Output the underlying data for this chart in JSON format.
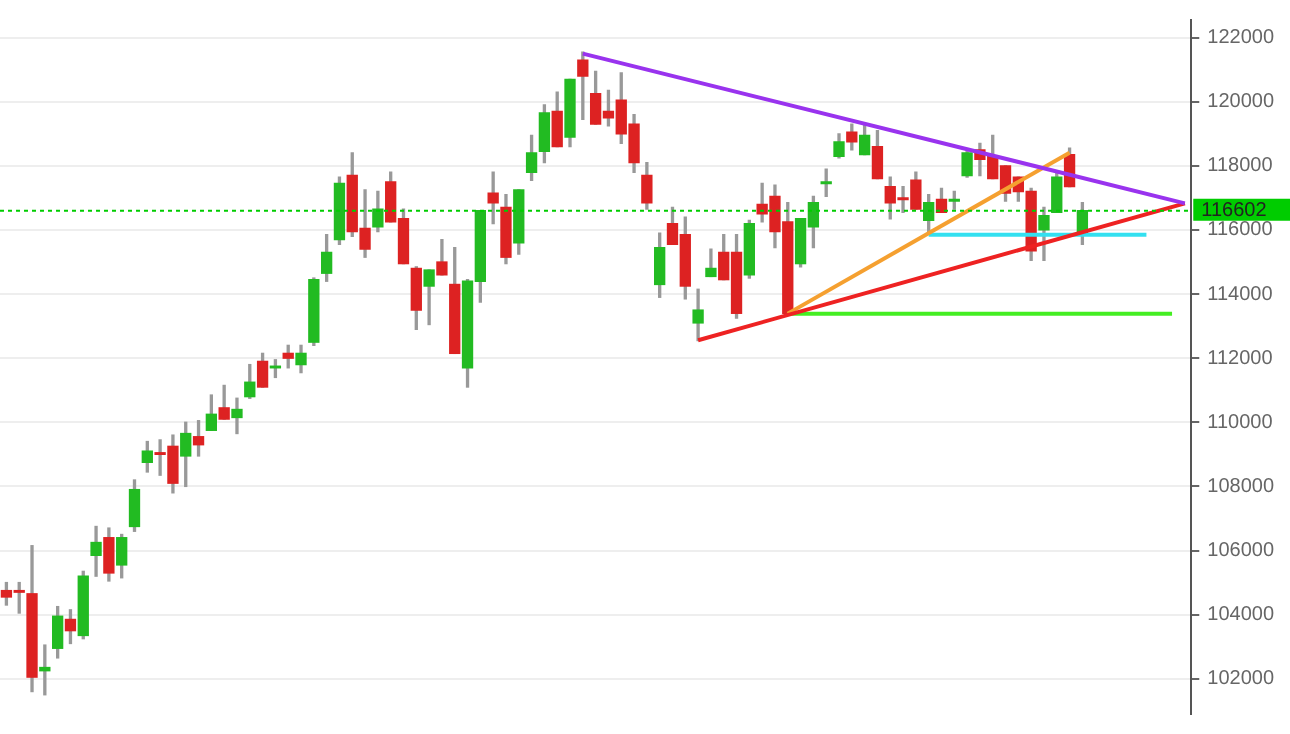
{
  "chart_data": {
    "type": "candlestick",
    "categories": [
      null,
      null,
      null,
      null,
      null,
      null,
      null,
      null,
      null,
      null,
      null,
      null,
      null,
      null,
      null,
      null,
      null,
      null,
      null,
      null,
      null,
      null,
      null,
      null,
      null,
      null,
      null,
      null,
      null,
      null,
      null,
      null,
      null,
      null,
      null,
      null,
      null,
      null,
      null,
      null,
      null,
      null,
      null,
      null,
      null,
      null,
      null,
      null,
      null,
      null,
      null,
      null,
      null,
      null,
      null,
      null,
      null,
      null,
      null,
      null,
      null,
      null,
      null,
      null,
      null,
      null,
      null,
      null,
      null,
      null,
      null,
      null,
      null,
      null,
      null,
      null,
      null,
      null,
      null,
      null,
      null,
      null,
      null,
      null,
      null,
      null,
      null,
      null,
      null,
      null,
      null,
      null,
      null
    ],
    "ohlc": [
      [
        104750,
        105000,
        104300,
        104550
      ],
      [
        104750,
        105000,
        104050,
        104700
      ],
      [
        104650,
        106150,
        101600,
        102050
      ],
      [
        102250,
        103050,
        101500,
        102350
      ],
      [
        102950,
        104250,
        102650,
        103950
      ],
      [
        103850,
        104150,
        103100,
        103500
      ],
      [
        103350,
        105350,
        103250,
        105200
      ],
      [
        105850,
        106750,
        105200,
        106250
      ],
      [
        106400,
        106700,
        105050,
        105300
      ],
      [
        105550,
        106500,
        105150,
        106400
      ],
      [
        106750,
        108200,
        106600,
        107900
      ],
      [
        108750,
        109400,
        108450,
        109100
      ],
      [
        109050,
        109450,
        108350,
        109000
      ],
      [
        109250,
        109600,
        107800,
        108100
      ],
      [
        108950,
        110000,
        108000,
        109650
      ],
      [
        109550,
        110050,
        108950,
        109300
      ],
      [
        109750,
        110850,
        109750,
        110250
      ],
      [
        110450,
        111150,
        110100,
        110100
      ],
      [
        110150,
        110750,
        109650,
        110400
      ],
      [
        110800,
        111800,
        110750,
        111250
      ],
      [
        111900,
        112150,
        111100,
        111100
      ],
      [
        111700,
        111950,
        111400,
        111750
      ],
      [
        112150,
        112400,
        111700,
        112000
      ],
      [
        111800,
        112400,
        111550,
        112150
      ],
      [
        112500,
        114500,
        112400,
        114450
      ],
      [
        114650,
        115850,
        114400,
        115300
      ],
      [
        115700,
        117650,
        115550,
        117450
      ],
      [
        117700,
        118400,
        115800,
        115950
      ],
      [
        116050,
        117250,
        115150,
        115400
      ],
      [
        116100,
        117200,
        115950,
        116650
      ],
      [
        117500,
        117800,
        116250,
        116250
      ],
      [
        116350,
        116650,
        114950,
        114950
      ],
      [
        114800,
        114850,
        112900,
        113500
      ],
      [
        114250,
        114750,
        113050,
        114750
      ],
      [
        115000,
        115700,
        114600,
        114600
      ],
      [
        114300,
        115450,
        112150,
        112150
      ],
      [
        111700,
        114450,
        111100,
        114400
      ],
      [
        114400,
        116600,
        113750,
        116600
      ],
      [
        117150,
        117800,
        116200,
        116850
      ],
      [
        116700,
        117100,
        114950,
        115150
      ],
      [
        115600,
        117250,
        115250,
        117250
      ],
      [
        117800,
        118950,
        117550,
        118400
      ],
      [
        118450,
        119900,
        118100,
        119650
      ],
      [
        119700,
        120300,
        118600,
        118600
      ],
      [
        118900,
        120700,
        118600,
        120700
      ],
      [
        121300,
        121550,
        119450,
        120800
      ],
      [
        120250,
        120950,
        119300,
        119300
      ],
      [
        119700,
        120350,
        119250,
        119500
      ],
      [
        120050,
        120900,
        118700,
        119000
      ],
      [
        119300,
        119600,
        117800,
        118100
      ],
      [
        117700,
        118100,
        116650,
        116850
      ],
      [
        114300,
        115900,
        113900,
        115450
      ],
      [
        116200,
        116700,
        115550,
        115550
      ],
      [
        115850,
        116400,
        113850,
        114250
      ],
      [
        113100,
        114150,
        112550,
        113500
      ],
      [
        114550,
        115400,
        114550,
        114800
      ],
      [
        115300,
        115850,
        114450,
        114450
      ],
      [
        115300,
        115850,
        113250,
        113400
      ],
      [
        114600,
        116300,
        114500,
        116200
      ],
      [
        116800,
        117450,
        116250,
        116500
      ],
      [
        117050,
        117400,
        115450,
        115950
      ],
      [
        116250,
        116850,
        113400,
        113400
      ],
      [
        114950,
        116350,
        114850,
        116350
      ],
      [
        116100,
        117050,
        115450,
        116850
      ],
      [
        117450,
        117900,
        117050,
        117500
      ],
      [
        118300,
        119000,
        118250,
        118750
      ],
      [
        119050,
        119300,
        118500,
        118750
      ],
      [
        118350,
        119300,
        118350,
        118950
      ],
      [
        118600,
        119100,
        117600,
        117600
      ],
      [
        117350,
        117650,
        116350,
        116850
      ],
      [
        117000,
        117350,
        116550,
        116950
      ],
      [
        117550,
        117800,
        116650,
        116650
      ],
      [
        116300,
        117100,
        115950,
        116850
      ],
      [
        116950,
        117300,
        116550,
        116550
      ],
      [
        116900,
        117200,
        116650,
        116950
      ],
      [
        117700,
        118500,
        117650,
        118400
      ],
      [
        118500,
        118700,
        117700,
        118200
      ],
      [
        118300,
        118950,
        117600,
        117600
      ],
      [
        118000,
        118000,
        116900,
        117150
      ],
      [
        117650,
        117650,
        116900,
        117200
      ],
      [
        117200,
        117300,
        115050,
        115350
      ],
      [
        116000,
        116700,
        115050,
        116450
      ],
      [
        116550,
        117800,
        116550,
        117650
      ],
      [
        118350,
        118550,
        117350,
        117350
      ],
      [
        115900,
        116850,
        115550,
        116600
      ],
      null,
      null,
      null,
      null,
      null,
      null,
      null,
      null
    ],
    "series": [
      {
        "type": "line",
        "color": "#9933ee",
        "values": [
          null,
          null,
          null,
          null,
          null,
          null,
          null,
          null,
          null,
          null,
          null,
          null,
          null,
          null,
          null,
          null,
          null,
          null,
          null,
          null,
          null,
          null,
          null,
          null,
          null,
          null,
          null,
          null,
          null,
          null,
          null,
          null,
          null,
          null,
          null,
          null,
          null,
          null,
          null,
          null,
          null,
          null,
          null,
          null,
          null,
          121500,
          null,
          null,
          null,
          null,
          null,
          null,
          null,
          null,
          null,
          null,
          null,
          null,
          null,
          null,
          null,
          null,
          null,
          null,
          null,
          null,
          null,
          null,
          null,
          null,
          null,
          null,
          null,
          null,
          null,
          null,
          null,
          null,
          null,
          null,
          null,
          null,
          null,
          null,
          null,
          null,
          null,
          null,
          null,
          null,
          null,
          null,
          116830
        ]
      },
      {
        "type": "line",
        "color": "#ee2222",
        "values": [
          null,
          null,
          null,
          null,
          null,
          null,
          null,
          null,
          null,
          null,
          null,
          null,
          null,
          null,
          null,
          null,
          null,
          null,
          null,
          null,
          null,
          null,
          null,
          null,
          null,
          null,
          null,
          null,
          null,
          null,
          null,
          null,
          null,
          null,
          null,
          null,
          null,
          null,
          null,
          null,
          null,
          null,
          null,
          null,
          null,
          null,
          null,
          null,
          null,
          null,
          null,
          null,
          null,
          null,
          112560,
          null,
          null,
          null,
          null,
          null,
          null,
          null,
          null,
          null,
          null,
          null,
          null,
          null,
          null,
          null,
          null,
          null,
          null,
          null,
          null,
          null,
          null,
          null,
          null,
          null,
          null,
          null,
          null,
          null,
          null,
          null,
          null,
          null,
          null,
          null,
          null,
          null,
          116830
        ]
      },
      {
        "type": "line",
        "color": "#f5a030",
        "values": [
          null,
          null,
          null,
          null,
          null,
          null,
          null,
          null,
          null,
          null,
          null,
          null,
          null,
          null,
          null,
          null,
          null,
          null,
          null,
          null,
          null,
          null,
          null,
          null,
          null,
          null,
          null,
          null,
          null,
          null,
          null,
          null,
          null,
          null,
          null,
          null,
          null,
          null,
          null,
          null,
          null,
          null,
          null,
          null,
          null,
          null,
          null,
          null,
          null,
          null,
          null,
          null,
          null,
          null,
          null,
          null,
          null,
          null,
          null,
          null,
          null,
          113390,
          null,
          null,
          null,
          null,
          null,
          null,
          null,
          null,
          null,
          null,
          null,
          null,
          null,
          null,
          null,
          null,
          null,
          null,
          null,
          null,
          null,
          118410,
          null,
          null,
          null,
          null,
          null,
          null,
          null,
          null,
          null
        ]
      },
      {
        "type": "line",
        "color": "#33e0f0",
        "values": [
          null,
          null,
          null,
          null,
          null,
          null,
          null,
          null,
          null,
          null,
          null,
          null,
          null,
          null,
          null,
          null,
          null,
          null,
          null,
          null,
          null,
          null,
          null,
          null,
          null,
          null,
          null,
          null,
          null,
          null,
          null,
          null,
          null,
          null,
          null,
          null,
          null,
          null,
          null,
          null,
          null,
          null,
          null,
          null,
          null,
          null,
          null,
          null,
          null,
          null,
          null,
          null,
          null,
          null,
          null,
          null,
          null,
          null,
          null,
          null,
          null,
          null,
          null,
          null,
          null,
          null,
          null,
          null,
          null,
          null,
          null,
          null,
          115850,
          null,
          null,
          null,
          null,
          null,
          null,
          null,
          null,
          null,
          null,
          null,
          null,
          null,
          null,
          null,
          null,
          115850,
          null,
          null,
          null
        ]
      },
      {
        "type": "line",
        "color": "#44ee22",
        "values": [
          null,
          null,
          null,
          null,
          null,
          null,
          null,
          null,
          null,
          null,
          null,
          null,
          null,
          null,
          null,
          null,
          null,
          null,
          null,
          null,
          null,
          null,
          null,
          null,
          null,
          null,
          null,
          null,
          null,
          null,
          null,
          null,
          null,
          null,
          null,
          null,
          null,
          null,
          null,
          null,
          null,
          null,
          null,
          null,
          null,
          null,
          null,
          null,
          null,
          null,
          null,
          null,
          null,
          null,
          null,
          null,
          null,
          null,
          null,
          null,
          null,
          113390,
          null,
          null,
          null,
          null,
          null,
          null,
          null,
          null,
          null,
          null,
          null,
          null,
          null,
          null,
          null,
          null,
          null,
          null,
          null,
          null,
          null,
          null,
          null,
          null,
          null,
          null,
          null,
          null,
          null,
          113390,
          null
        ]
      }
    ],
    "ylim": [
      100900,
      122550
    ],
    "yticks": [
      102000,
      104000,
      106000,
      108000,
      110000,
      112000,
      114000,
      116000,
      118000,
      120000,
      122000
    ],
    "grid": "y",
    "tick_labels": "y",
    "ref_lines": [
      {
        "axis": "y",
        "value": 116602,
        "label": "116602",
        "color": "#00cc00",
        "line_style": "dotted"
      }
    ]
  }
}
